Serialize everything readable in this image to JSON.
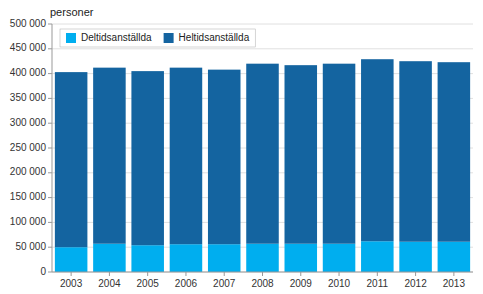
{
  "chart_data": {
    "type": "bar",
    "stacked": true,
    "ylabel": "personer",
    "categories": [
      "2003",
      "2004",
      "2005",
      "2006",
      "2007",
      "2008",
      "2009",
      "2010",
      "2011",
      "2012",
      "2013"
    ],
    "series": [
      {
        "name": "Deltidsanställda",
        "color": "#00aeef",
        "values": [
          50000,
          57000,
          54000,
          56000,
          56000,
          57000,
          57000,
          57000,
          62000,
          61000,
          61000
        ]
      },
      {
        "name": "Heltidsanställda",
        "color": "#1464a0",
        "values": [
          353000,
          355000,
          351000,
          356000,
          352000,
          363000,
          360000,
          363000,
          367000,
          364000,
          362000
        ]
      }
    ],
    "ylim": [
      0,
      500000
    ],
    "yticks": [
      0,
      {
        "value": 50000,
        "label": "50 000"
      },
      {
        "value": 100000,
        "label": "100 000"
      },
      {
        "value": 150000,
        "label": "150 000"
      },
      {
        "value": 200000,
        "label": "200 000"
      },
      {
        "value": 250000,
        "label": "250 000"
      },
      {
        "value": 300000,
        "label": "300 000"
      },
      {
        "value": 350000,
        "label": "350 000"
      },
      {
        "value": 400000,
        "label": "400 000"
      },
      {
        "value": 450000,
        "label": "450 000"
      },
      {
        "value": 500000,
        "label": "500 000"
      }
    ],
    "grid": true,
    "legend": "upper left"
  }
}
